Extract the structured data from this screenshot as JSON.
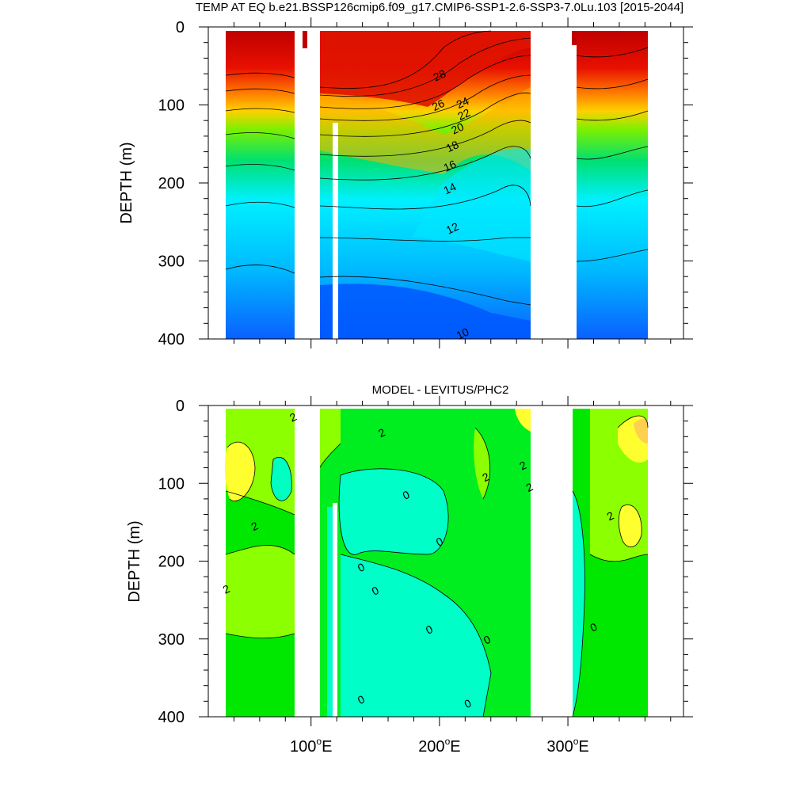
{
  "figure": {
    "title": "TEMP AT EQ b.e21.BSSP126cmip6.f09_g17.CMIP6-SSP1-2.6-SSP3-7.0Lu.103 [2015-2044]"
  },
  "chart_data": [
    {
      "type": "heatmap",
      "panel": "top",
      "title": "TEMP AT EQ b.e21.BSSP126cmip6.f09_g17.CMIP6-SSP1-2.6-SSP3-7.0Lu.103 [2015-2044]",
      "ylabel": "DEPTH (m)",
      "xlabel": "",
      "xlim": [
        20,
        390
      ],
      "ylim": [
        400,
        0
      ],
      "yticks": [
        0,
        100,
        200,
        300,
        400
      ],
      "xticks": [
        100,
        200,
        300
      ],
      "xtick_labels": [
        "100°E",
        "200°E",
        "300°E"
      ],
      "show_xtick_labels": false,
      "contour_labels": [
        {
          "text": "28",
          "x": 200,
          "y": 62
        },
        {
          "text": "26",
          "x": 199,
          "y": 100
        },
        {
          "text": "24",
          "x": 218,
          "y": 97
        },
        {
          "text": "22",
          "x": 219,
          "y": 112
        },
        {
          "text": "20",
          "x": 214,
          "y": 130
        },
        {
          "text": "18",
          "x": 210,
          "y": 153
        },
        {
          "text": "16",
          "x": 208,
          "y": 178
        },
        {
          "text": "14",
          "x": 208,
          "y": 207
        },
        {
          "text": "12",
          "x": 210,
          "y": 258
        },
        {
          "text": "10",
          "x": 218,
          "y": 393
        }
      ],
      "land_gaps_lon": [
        [
          98,
          118
        ],
        [
          278,
          314
        ]
      ],
      "colors": {
        "warm": "#c80000",
        "mid": "#ffd200",
        "cool": "#00e5ff",
        "cold": "#0050ff"
      }
    },
    {
      "type": "heatmap",
      "panel": "bottom",
      "title": "MODEL - LEVITUS/PHC2",
      "ylabel": "DEPTH (m)",
      "xlabel": "",
      "xlim": [
        20,
        390
      ],
      "ylim": [
        400,
        0
      ],
      "yticks": [
        0,
        100,
        200,
        300,
        400
      ],
      "xticks": [
        100,
        200,
        300
      ],
      "xtick_labels": [
        "100°E",
        "200°E",
        "300°E"
      ],
      "contour_labels": [
        {
          "text": "2",
          "x": 86,
          "y": 15
        },
        {
          "text": "2",
          "x": 155,
          "y": 35
        },
        {
          "text": "2",
          "x": 236,
          "y": 92
        },
        {
          "text": "2",
          "x": 265,
          "y": 77
        },
        {
          "text": "2",
          "x": 270,
          "y": 105
        },
        {
          "text": "2",
          "x": 56,
          "y": 155
        },
        {
          "text": "2",
          "x": 34,
          "y": 236
        },
        {
          "text": "2",
          "x": 333,
          "y": 142
        },
        {
          "text": "0",
          "x": 174,
          "y": 115
        },
        {
          "text": "0",
          "x": 200,
          "y": 175
        },
        {
          "text": "0",
          "x": 139,
          "y": 208
        },
        {
          "text": "0",
          "x": 150,
          "y": 238
        },
        {
          "text": "0",
          "x": 192,
          "y": 288
        },
        {
          "text": "0",
          "x": 237,
          "y": 301
        },
        {
          "text": "0",
          "x": 320,
          "y": 285
        },
        {
          "text": "0",
          "x": 139,
          "y": 378
        },
        {
          "text": "0",
          "x": 222,
          "y": 383
        }
      ],
      "land_gaps_lon": [
        [
          98,
          118
        ],
        [
          278,
          314
        ]
      ],
      "colors": {
        "pos2": "#ffff00",
        "pos1": "#8cff00",
        "zero": "#00f000",
        "neg": "#00ffc0"
      }
    }
  ]
}
